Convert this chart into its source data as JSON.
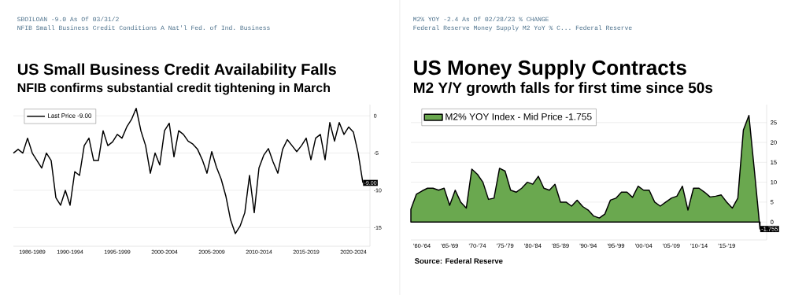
{
  "chart_data": [
    {
      "type": "line",
      "title": "US Small Business Credit Availability Falls",
      "subtitle": "NFIB confirms substantial credit tightening in March",
      "annotations": [
        "SBOILOAN -9.0 As Of 03/31/2",
        "NFIB Small Business Credit Conditions A Nat'l Fed. of Ind. Business",
        {
          "text": "-9.00",
          "y": -9
        }
      ],
      "categories": [
        null,
        null,
        null,
        null,
        "1986-1989",
        null,
        null,
        null,
        null,
        null,
        null,
        null,
        "1990-1994",
        null,
        null,
        null,
        null,
        null,
        null,
        null,
        null,
        null,
        "1995-1999",
        null,
        null,
        null,
        null,
        null,
        null,
        null,
        null,
        null,
        "2000-2004",
        null,
        null,
        null,
        null,
        null,
        null,
        null,
        null,
        null,
        "2005-2009",
        null,
        null,
        null,
        null,
        null,
        null,
        null,
        null,
        null,
        "2010-2014",
        null,
        null,
        null,
        null,
        null,
        null,
        null,
        null,
        null,
        "2015-2019",
        null,
        null,
        null,
        null,
        null,
        null,
        null,
        null,
        null,
        "2020-2024",
        null,
        null
      ],
      "series": [
        {
          "name": "Last Price -9.00",
          "color": "#000000",
          "values": [
            -5,
            -4.5,
            -5,
            -3,
            -5,
            -6,
            -7,
            -5,
            -6,
            -11,
            -12,
            -10,
            -12,
            -7.5,
            -8,
            -4,
            -3,
            -6,
            -6,
            -2,
            -4,
            -3.5,
            -2.5,
            -3,
            -1.5,
            -0.5,
            1,
            -2,
            -4,
            -7.7,
            -5,
            -6.6,
            -2,
            -1,
            -5.5,
            -2,
            -2.5,
            -3.4,
            -3.8,
            -4.5,
            -5.9,
            -7.7,
            -4.8,
            -6.9,
            -8.5,
            -10.8,
            -14,
            -15.8,
            -14.8,
            -13,
            -8,
            -13,
            -7,
            -5.3,
            -4.4,
            -6.2,
            -7.7,
            -4.5,
            -3.2,
            -4,
            -4.8,
            -4,
            -3,
            -5.9,
            -3,
            -2.5,
            -5.9,
            -0.9,
            -3.4,
            -0.9,
            -2.5,
            -1.5,
            -2.2,
            -5,
            -9
          ]
        }
      ],
      "ylim": [
        -17.5,
        1.5
      ],
      "yticks": [
        0,
        -5,
        -10,
        -15
      ],
      "grid": "y",
      "legend": "top left"
    },
    {
      "type": "area",
      "title": "US Money Supply Contracts",
      "subtitle": "M2 Y/Y growth falls for first time since 50s",
      "annotations": [
        "M2% YOY -2.4 As Of 02/28/23 % CHANGE",
        "Federal Reserve Money Supply M2 YoY % C... Federal Reserve",
        "Source: Federal Reserve",
        {
          "text": "-1.755",
          "y": -1.755
        }
      ],
      "categories": [
        null,
        null,
        "'60-'64",
        null,
        null,
        null,
        null,
        "'65-'69",
        null,
        null,
        null,
        null,
        "'70-'74",
        null,
        null,
        null,
        null,
        "'75-'79",
        null,
        null,
        null,
        null,
        "'80-'84",
        null,
        null,
        null,
        null,
        "'85-'89",
        null,
        null,
        null,
        null,
        "'90-'94",
        null,
        null,
        null,
        null,
        "'95-'99",
        null,
        null,
        null,
        null,
        "'00-'04",
        null,
        null,
        null,
        null,
        "'05-'09",
        null,
        null,
        null,
        null,
        "'10-'14",
        null,
        null,
        null,
        null,
        "'15-'19",
        null,
        null,
        null,
        null,
        null,
        null
      ],
      "series": [
        {
          "name": "M2% YOY Index - Mid Price -1.755",
          "color": "#6aa84f",
          "values": [
            3.2,
            7,
            7.8,
            8.5,
            8.5,
            8,
            8.5,
            4.2,
            8,
            5,
            3.5,
            13.3,
            12,
            10,
            5.7,
            6,
            13.5,
            12.8,
            8,
            7.5,
            8.5,
            10,
            9.5,
            11.5,
            8.5,
            8,
            9.5,
            5,
            5,
            4,
            5.5,
            3.9,
            3,
            1.5,
            1,
            2,
            5.5,
            6,
            7.5,
            7.5,
            6.2,
            9,
            8,
            8,
            5,
            4,
            5,
            6,
            6.5,
            9,
            3,
            8.5,
            8.5,
            7.5,
            6.3,
            6.5,
            6.8,
            5,
            3.5,
            6,
            23.1,
            26.8,
            12.8,
            -1.755
          ]
        }
      ],
      "ylim": [
        -4.5,
        29.5
      ],
      "yticks": [
        0,
        5,
        10,
        15,
        20,
        25
      ],
      "grid": "y",
      "legend": "top left"
    }
  ]
}
